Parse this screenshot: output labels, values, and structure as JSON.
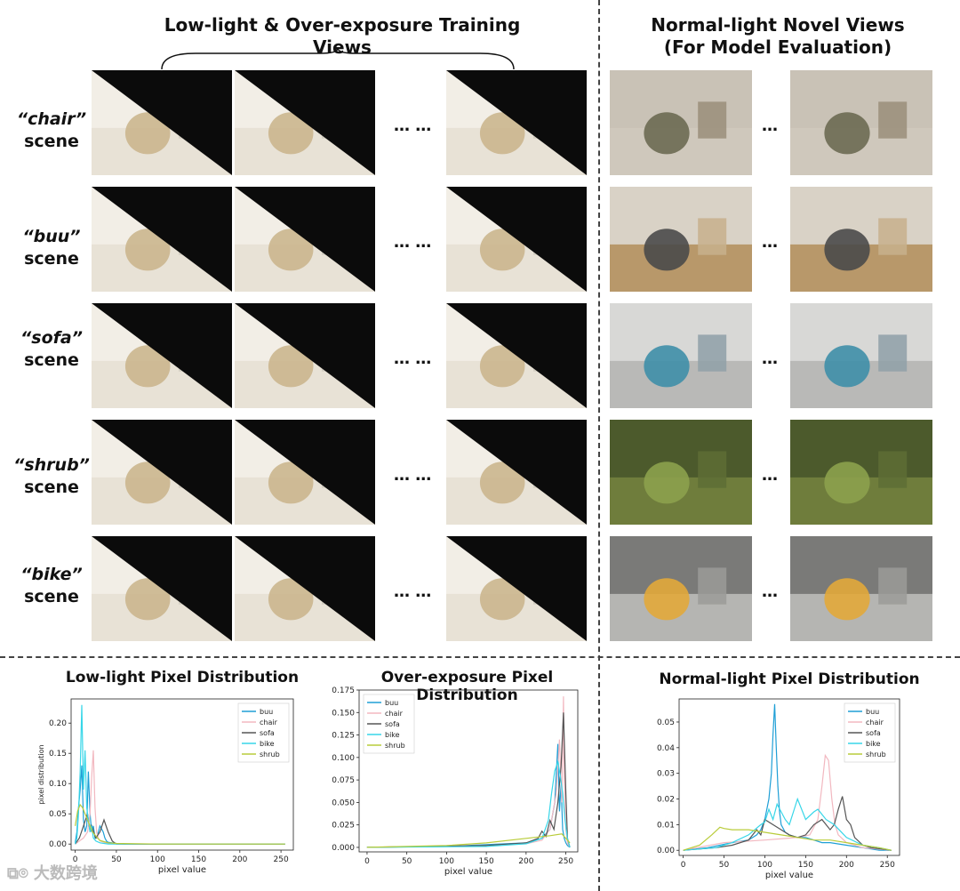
{
  "headers": {
    "left": "Low-light & Over-exposure Training Views",
    "right_line1": "Normal-light Novel Views",
    "right_line2": "(For Model Evaluation)"
  },
  "ellipsis_left": "… …",
  "ellipsis_right": "…",
  "scene_word": "scene",
  "rows": [
    {
      "name": "“chair”",
      "base": "#9a8e7a",
      "sky": "#c9c2b6",
      "ground": "#cfc8bc",
      "obj": "#6b6a52"
    },
    {
      "name": "“buu”",
      "base": "#c7b08c",
      "sky": "#d9d2c6",
      "ground": "#b8986a",
      "obj": "#4a4a4a"
    },
    {
      "name": "“sofa”",
      "base": "#8fa0a8",
      "sky": "#d8d8d6",
      "ground": "#b9b9b7",
      "obj": "#3f8fa8"
    },
    {
      "name": "“shrub”",
      "base": "#5e6d35",
      "sky": "#4c5a2c",
      "ground": "#6f7d3c",
      "obj": "#8ca14c"
    },
    {
      "name": "“bike”",
      "base": "#9b9b98",
      "sky": "#7a7a78",
      "ground": "#b5b5b2",
      "obj": "#e2a93a"
    }
  ],
  "charts": [
    {
      "title": "Low-light Pixel Distribution",
      "xlabel": "pixel value",
      "ylabel": "pixel distribution"
    },
    {
      "title": "Over-exposure Pixel Distribution",
      "xlabel": "pixel value",
      "ylabel": ""
    },
    {
      "title": "Normal-light Pixel Distribution",
      "xlabel": "pixel value",
      "ylabel": ""
    }
  ],
  "watermark": "大数跨境",
  "chart_data": [
    {
      "type": "line",
      "title": "Low-light Pixel Distribution",
      "xlabel": "pixel value",
      "ylabel": "pixel distribution",
      "xlim": [
        -5,
        265
      ],
      "ylim": [
        -0.01,
        0.24
      ],
      "xticks": [
        0,
        50,
        100,
        150,
        200,
        250
      ],
      "yticks": [
        0.0,
        0.05,
        0.1,
        0.15,
        0.2
      ],
      "ytick_labels": [
        "0.00",
        "0.05",
        "0.10",
        "0.15",
        "0.20"
      ],
      "legend": "top-right",
      "series": [
        {
          "name": "buu",
          "color": "#1f9fd6",
          "x": [
            0,
            2,
            4,
            6,
            8,
            10,
            12,
            14,
            16,
            18,
            20,
            22,
            24,
            26,
            28,
            30,
            32,
            34,
            36,
            38,
            40,
            45,
            50,
            60,
            100,
            150,
            200,
            255
          ],
          "y": [
            0.002,
            0.02,
            0.06,
            0.09,
            0.13,
            0.04,
            0.02,
            0.03,
            0.12,
            0.05,
            0.02,
            0.03,
            0.01,
            0.01,
            0.02,
            0.03,
            0.025,
            0.02,
            0.01,
            0.005,
            0.003,
            0.002,
            0.001,
            0.0,
            0.0,
            0.0,
            0.0,
            0.0
          ]
        },
        {
          "name": "chair",
          "color": "#f2b8c0",
          "x": [
            0,
            5,
            10,
            15,
            18,
            20,
            22,
            24,
            26,
            28,
            30,
            35,
            40,
            50,
            100,
            255
          ],
          "y": [
            0.0,
            0.005,
            0.01,
            0.02,
            0.05,
            0.11,
            0.155,
            0.06,
            0.02,
            0.01,
            0.005,
            0.003,
            0.001,
            0.0,
            0.0,
            0.0
          ]
        },
        {
          "name": "sofa",
          "color": "#555555",
          "x": [
            0,
            5,
            10,
            15,
            18,
            20,
            25,
            30,
            35,
            40,
            45,
            50,
            100,
            255
          ],
          "y": [
            0.0,
            0.01,
            0.03,
            0.05,
            0.02,
            0.03,
            0.01,
            0.02,
            0.04,
            0.02,
            0.005,
            0.0,
            0.0,
            0.0
          ]
        },
        {
          "name": "bike",
          "color": "#37d6e8",
          "x": [
            0,
            2,
            4,
            6,
            8,
            10,
            12,
            14,
            16,
            18,
            20,
            22,
            25,
            30,
            35,
            40,
            50,
            100,
            255
          ],
          "y": [
            0.0,
            0.01,
            0.05,
            0.12,
            0.23,
            0.09,
            0.155,
            0.06,
            0.04,
            0.02,
            0.03,
            0.01,
            0.005,
            0.002,
            0.001,
            0.0,
            0.0,
            0.0,
            0.0
          ]
        },
        {
          "name": "shrub",
          "color": "#b9cc3a",
          "x": [
            0,
            3,
            6,
            9,
            12,
            15,
            18,
            21,
            24,
            27,
            30,
            35,
            40,
            50,
            100,
            150,
            200,
            255
          ],
          "y": [
            0.03,
            0.055,
            0.065,
            0.06,
            0.05,
            0.04,
            0.03,
            0.02,
            0.015,
            0.01,
            0.006,
            0.004,
            0.002,
            0.001,
            0.0,
            0.0,
            0.0,
            0.0
          ]
        }
      ]
    },
    {
      "type": "line",
      "title": "Over-exposure Pixel Distribution",
      "xlabel": "pixel value",
      "ylabel": "",
      "xlim": [
        -10,
        265
      ],
      "ylim": [
        -0.005,
        0.175
      ],
      "xticks": [
        0,
        50,
        100,
        150,
        200,
        250
      ],
      "yticks": [
        0.0,
        0.025,
        0.05,
        0.075,
        0.1,
        0.125,
        0.15,
        0.175
      ],
      "ytick_labels": [
        "0.000",
        "0.025",
        "0.050",
        "0.075",
        "0.100",
        "0.125",
        "0.150",
        "0.175"
      ],
      "legend": "top-left",
      "series": [
        {
          "name": "buu",
          "color": "#1f9fd6",
          "x": [
            0,
            100,
            150,
            200,
            220,
            230,
            236,
            240,
            242,
            244,
            246,
            248,
            250,
            252,
            255
          ],
          "y": [
            0.0,
            0.001,
            0.003,
            0.005,
            0.01,
            0.02,
            0.05,
            0.115,
            0.04,
            0.07,
            0.02,
            0.01,
            0.005,
            0.002,
            0.0
          ]
        },
        {
          "name": "chair",
          "color": "#f2b8c0",
          "x": [
            0,
            150,
            200,
            220,
            230,
            238,
            242,
            245,
            247,
            248,
            250,
            252,
            255
          ],
          "y": [
            0.0,
            0.002,
            0.004,
            0.008,
            0.02,
            0.06,
            0.12,
            0.05,
            0.168,
            0.08,
            0.02,
            0.005,
            0.0
          ]
        },
        {
          "name": "sofa",
          "color": "#555555",
          "x": [
            0,
            150,
            200,
            215,
            220,
            225,
            230,
            235,
            240,
            244,
            247,
            250,
            252,
            255
          ],
          "y": [
            0.0,
            0.002,
            0.005,
            0.01,
            0.018,
            0.012,
            0.03,
            0.02,
            0.05,
            0.09,
            0.15,
            0.06,
            0.01,
            0.0
          ]
        },
        {
          "name": "bike",
          "color": "#37d6e8",
          "x": [
            0,
            150,
            200,
            220,
            228,
            232,
            236,
            240,
            243,
            246,
            249,
            252,
            255
          ],
          "y": [
            0.0,
            0.001,
            0.004,
            0.01,
            0.03,
            0.06,
            0.085,
            0.095,
            0.08,
            0.06,
            0.03,
            0.01,
            0.0
          ]
        },
        {
          "name": "shrub",
          "color": "#b9cc3a",
          "x": [
            0,
            50,
            100,
            150,
            200,
            230,
            245,
            250,
            255
          ],
          "y": [
            0.0,
            0.001,
            0.002,
            0.005,
            0.01,
            0.013,
            0.015,
            0.01,
            0.005
          ]
        }
      ]
    },
    {
      "type": "line",
      "title": "Normal-light Pixel Distribution",
      "xlabel": "pixel value",
      "ylabel": "",
      "xlim": [
        -5,
        265
      ],
      "ylim": [
        -0.002,
        0.059
      ],
      "xticks": [
        0,
        50,
        100,
        150,
        200,
        250
      ],
      "yticks": [
        0.0,
        0.01,
        0.02,
        0.03,
        0.04,
        0.05
      ],
      "ytick_labels": [
        "0.00",
        "0.01",
        "0.02",
        "0.03",
        "0.04",
        "0.05"
      ],
      "legend": "top-right",
      "series": [
        {
          "name": "buu",
          "color": "#1f9fd6",
          "x": [
            0,
            30,
            60,
            80,
            90,
            95,
            100,
            105,
            108,
            110,
            112,
            114,
            116,
            118,
            120,
            125,
            130,
            140,
            150,
            160,
            170,
            180,
            200,
            220,
            240,
            255
          ],
          "y": [
            0.0,
            0.001,
            0.003,
            0.004,
            0.006,
            0.008,
            0.012,
            0.02,
            0.03,
            0.045,
            0.057,
            0.04,
            0.025,
            0.015,
            0.01,
            0.007,
            0.006,
            0.005,
            0.005,
            0.004,
            0.003,
            0.003,
            0.002,
            0.001,
            0.0,
            0.0
          ]
        },
        {
          "name": "chair",
          "color": "#f2b8c0",
          "x": [
            0,
            50,
            100,
            140,
            155,
            165,
            170,
            174,
            178,
            182,
            186,
            190,
            200,
            220,
            255
          ],
          "y": [
            0.0,
            0.003,
            0.004,
            0.005,
            0.006,
            0.012,
            0.025,
            0.037,
            0.035,
            0.02,
            0.01,
            0.006,
            0.003,
            0.001,
            0.0
          ]
        },
        {
          "name": "sofa",
          "color": "#555555",
          "x": [
            0,
            40,
            60,
            80,
            90,
            95,
            100,
            110,
            120,
            130,
            140,
            150,
            160,
            170,
            180,
            185,
            190,
            195,
            200,
            205,
            210,
            220,
            230,
            255
          ],
          "y": [
            0.0,
            0.001,
            0.002,
            0.004,
            0.008,
            0.006,
            0.012,
            0.01,
            0.008,
            0.006,
            0.005,
            0.006,
            0.01,
            0.012,
            0.008,
            0.01,
            0.016,
            0.021,
            0.012,
            0.01,
            0.005,
            0.002,
            0.001,
            0.0
          ]
        },
        {
          "name": "bike",
          "color": "#37d6e8",
          "x": [
            0,
            40,
            60,
            80,
            95,
            100,
            105,
            110,
            115,
            120,
            125,
            130,
            135,
            140,
            150,
            160,
            165,
            175,
            185,
            200,
            220,
            240,
            255
          ],
          "y": [
            0.0,
            0.001,
            0.003,
            0.006,
            0.01,
            0.011,
            0.016,
            0.012,
            0.018,
            0.015,
            0.012,
            0.01,
            0.015,
            0.02,
            0.012,
            0.015,
            0.016,
            0.012,
            0.01,
            0.005,
            0.002,
            0.001,
            0.0
          ]
        },
        {
          "name": "shrub",
          "color": "#b9cc3a",
          "x": [
            0,
            20,
            35,
            45,
            50,
            60,
            80,
            100,
            120,
            140,
            160,
            180,
            200,
            220,
            240,
            255
          ],
          "y": [
            0.0,
            0.002,
            0.006,
            0.009,
            0.0085,
            0.008,
            0.008,
            0.007,
            0.006,
            0.005,
            0.004,
            0.004,
            0.003,
            0.002,
            0.001,
            0.0
          ]
        }
      ]
    }
  ]
}
